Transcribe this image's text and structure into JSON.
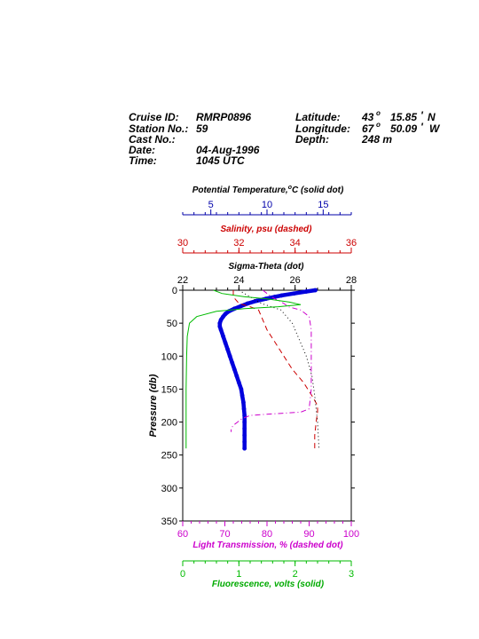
{
  "header": {
    "cruise_label": "Cruise ID:",
    "cruise_value": "RMRP0896",
    "station_label": "Station No.:",
    "station_value": "59",
    "cast_label": "Cast No.:",
    "cast_value": "",
    "date_label": "Date:",
    "date_value": "04-Aug-1996",
    "time_label": "Time:",
    "time_value": "1045 UTC",
    "lat_label": "Latitude:",
    "lat_deg": "43",
    "lat_min": "15.85",
    "lat_hemi": "N",
    "lon_label": "Longitude:",
    "lon_deg": "67",
    "lon_min": "50.09",
    "lon_hemi": "W",
    "depth_label": "Depth:",
    "depth_value": "248 m",
    "deg_sym": "o",
    "min_sym": "'"
  },
  "chart_data": {
    "type": "line",
    "ylabel": "Pressure (db)",
    "ylim": [
      350,
      0
    ],
    "yticks": [
      0,
      50,
      100,
      150,
      200,
      250,
      300,
      350
    ],
    "axes": {
      "temperature": {
        "label": "Potential Temperature,",
        "label_sup": "o",
        "label_unit": "C (solid dot)",
        "range": [
          2.5,
          17.5
        ],
        "ticks": [
          5,
          10,
          15
        ],
        "color": "#0000aa"
      },
      "salinity": {
        "label": "Salinity, psu  (dashed)",
        "range": [
          30,
          36
        ],
        "ticks": [
          30,
          32,
          34,
          36
        ],
        "color": "#cc0000"
      },
      "sigma": {
        "label": "Sigma-Theta (dot)",
        "range": [
          22,
          28
        ],
        "ticks": [
          22,
          24,
          26,
          28
        ],
        "color": "#000000"
      },
      "transmission": {
        "label": "Light Transmission, % (dashed dot)",
        "range": [
          60,
          100
        ],
        "ticks": [
          60,
          70,
          80,
          90,
          100
        ],
        "color": "#cc00cc"
      },
      "fluorescence": {
        "label": "Fluorescence, volts (solid)",
        "range": [
          0,
          3
        ],
        "ticks": [
          0,
          1,
          2,
          3
        ],
        "color": "#00bb00"
      }
    },
    "series": [
      {
        "name": "Potential Temperature",
        "axis": "temperature",
        "style": "solid-dot",
        "color": "#0000dd",
        "points": [
          [
            0,
            14.3
          ],
          [
            2,
            13.5
          ],
          [
            5,
            12.4
          ],
          [
            8,
            11.3
          ],
          [
            10,
            10.7
          ],
          [
            13,
            9.9
          ],
          [
            16,
            9.1
          ],
          [
            20,
            8.3
          ],
          [
            24,
            7.7
          ],
          [
            28,
            7.1
          ],
          [
            32,
            6.6
          ],
          [
            36,
            6.3
          ],
          [
            40,
            6.1
          ],
          [
            45,
            5.9
          ],
          [
            50,
            5.8
          ],
          [
            55,
            5.8
          ],
          [
            60,
            5.9
          ],
          [
            70,
            6.1
          ],
          [
            80,
            6.3
          ],
          [
            90,
            6.5
          ],
          [
            100,
            6.7
          ],
          [
            110,
            6.9
          ],
          [
            120,
            7.1
          ],
          [
            130,
            7.3
          ],
          [
            140,
            7.5
          ],
          [
            150,
            7.7
          ],
          [
            160,
            7.8
          ],
          [
            170,
            7.9
          ],
          [
            180,
            7.95
          ],
          [
            190,
            8.0
          ],
          [
            200,
            8.0
          ],
          [
            210,
            8.0
          ],
          [
            220,
            8.0
          ],
          [
            230,
            8.0
          ],
          [
            240,
            8.0
          ]
        ]
      },
      {
        "name": "Salinity",
        "axis": "salinity",
        "style": "dashed",
        "color": "#cc0000",
        "points": [
          [
            0,
            31.8
          ],
          [
            10,
            31.8
          ],
          [
            20,
            32.0
          ],
          [
            25,
            32.4
          ],
          [
            30,
            32.7
          ],
          [
            40,
            32.8
          ],
          [
            60,
            33.0
          ],
          [
            80,
            33.3
          ],
          [
            100,
            33.6
          ],
          [
            120,
            33.9
          ],
          [
            140,
            34.3
          ],
          [
            160,
            34.6
          ],
          [
            175,
            34.8
          ],
          [
            185,
            34.8
          ],
          [
            200,
            34.75
          ],
          [
            220,
            34.7
          ],
          [
            240,
            34.7
          ]
        ]
      },
      {
        "name": "Sigma-Theta",
        "axis": "sigma",
        "style": "dot",
        "color": "#000000",
        "points": [
          [
            0,
            24.0
          ],
          [
            20,
            24.8
          ],
          [
            30,
            25.5
          ],
          [
            50,
            25.9
          ],
          [
            80,
            26.2
          ],
          [
            100,
            26.4
          ],
          [
            130,
            26.6
          ],
          [
            160,
            26.7
          ],
          [
            200,
            26.8
          ],
          [
            240,
            26.85
          ]
        ]
      },
      {
        "name": "Light Transmission",
        "axis": "transmission",
        "style": "dashed-dot",
        "color": "#cc00cc",
        "points": [
          [
            0,
            79
          ],
          [
            10,
            81
          ],
          [
            20,
            84
          ],
          [
            25,
            85
          ],
          [
            30,
            88
          ],
          [
            35,
            89
          ],
          [
            40,
            90
          ],
          [
            60,
            90.5
          ],
          [
            80,
            90.5
          ],
          [
            120,
            90.5
          ],
          [
            150,
            90.5
          ],
          [
            180,
            90
          ],
          [
            185,
            88
          ],
          [
            188,
            80
          ],
          [
            190,
            76
          ],
          [
            195,
            74
          ],
          [
            200,
            73
          ],
          [
            205,
            72
          ],
          [
            210,
            71.5
          ],
          [
            215,
            71.5
          ]
        ]
      },
      {
        "name": "Fluorescence",
        "axis": "fluorescence",
        "style": "solid",
        "color": "#00bb00",
        "points": [
          [
            0,
            0.55
          ],
          [
            5,
            0.7
          ],
          [
            10,
            1.1
          ],
          [
            13,
            1.5
          ],
          [
            18,
            1.9
          ],
          [
            22,
            2.1
          ],
          [
            25,
            1.7
          ],
          [
            28,
            1.1
          ],
          [
            32,
            0.6
          ],
          [
            40,
            0.25
          ],
          [
            50,
            0.12
          ],
          [
            70,
            0.08
          ],
          [
            100,
            0.07
          ],
          [
            150,
            0.06
          ],
          [
            200,
            0.06
          ],
          [
            240,
            0.06
          ]
        ]
      }
    ]
  }
}
